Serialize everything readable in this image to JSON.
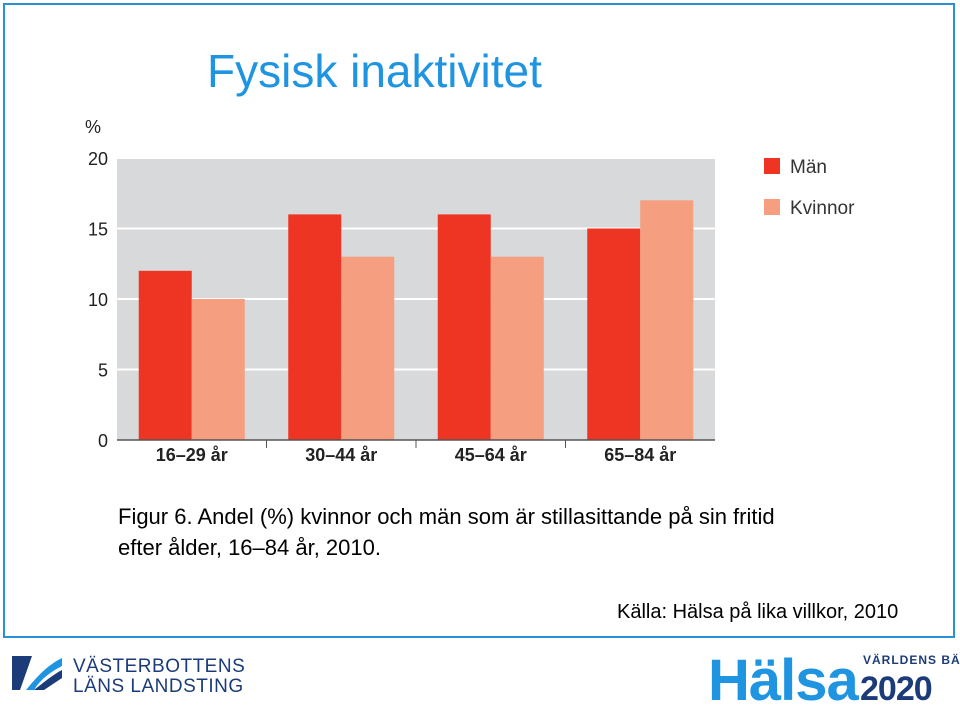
{
  "slide": {
    "title": "Fysisk inaktivitet",
    "caption_line1": "Figur 6. Andel (%) kvinnor och män som är stillasittande på sin fritid",
    "caption_line2": "efter ålder, 16–84 år, 2010.",
    "source": "Källa: Hälsa på lika villkor, 2010"
  },
  "footer": {
    "org_line1": "VÄSTERBOTTENS",
    "org_line2": "LÄNS LANDSTING",
    "logo_word": "Hälsa",
    "logo_year": "2020",
    "logo_tagline": "VÄRLDENS BÄSTA"
  },
  "colors": {
    "accent": "#1f94e0",
    "men": "#ee3524",
    "women": "#f59e80",
    "plot_bg": "#d8d9da"
  },
  "chart_data": {
    "type": "bar",
    "title": "",
    "unit_label": "%",
    "xlabel": "",
    "ylabel": "",
    "categories": [
      "16–29 år",
      "30–44 år",
      "45–64 år",
      "65–84 år"
    ],
    "series": [
      {
        "name": "Män",
        "values": [
          12,
          16,
          16,
          15
        ]
      },
      {
        "name": "Kvinnor",
        "values": [
          10,
          13,
          13,
          17
        ]
      }
    ],
    "ylim": [
      0,
      20
    ],
    "yticks": [
      0,
      5,
      10,
      15,
      20
    ],
    "grid": true,
    "legend": "right"
  }
}
